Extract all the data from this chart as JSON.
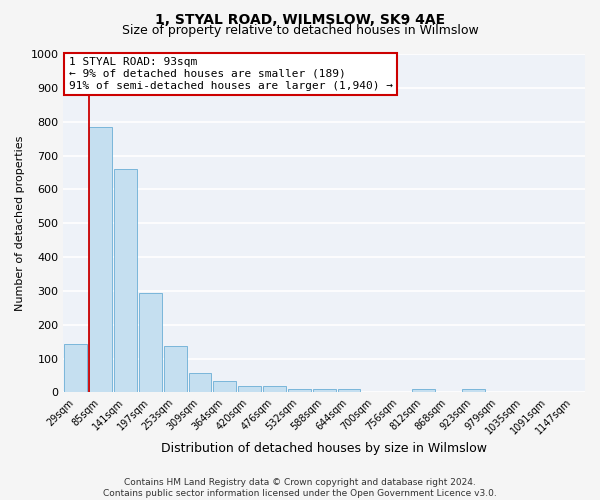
{
  "title": "1, STYAL ROAD, WILMSLOW, SK9 4AE",
  "subtitle": "Size of property relative to detached houses in Wilmslow",
  "xlabel": "Distribution of detached houses by size in Wilmslow",
  "ylabel": "Number of detached properties",
  "bin_labels": [
    "29sqm",
    "85sqm",
    "141sqm",
    "197sqm",
    "253sqm",
    "309sqm",
    "364sqm",
    "420sqm",
    "476sqm",
    "532sqm",
    "588sqm",
    "644sqm",
    "700sqm",
    "756sqm",
    "812sqm",
    "868sqm",
    "923sqm",
    "979sqm",
    "1035sqm",
    "1091sqm",
    "1147sqm"
  ],
  "bar_values": [
    143,
    785,
    660,
    295,
    137,
    57,
    33,
    20,
    20,
    10,
    10,
    10,
    0,
    0,
    10,
    0,
    10,
    0,
    0,
    0,
    0
  ],
  "bar_color": "#c5dff0",
  "bar_edgecolor": "#6aaed6",
  "vline_color": "#cc0000",
  "vline_index": 1,
  "ylim": [
    0,
    1000
  ],
  "yticks": [
    0,
    100,
    200,
    300,
    400,
    500,
    600,
    700,
    800,
    900,
    1000
  ],
  "annotation_title": "1 STYAL ROAD: 93sqm",
  "annotation_line1": "← 9% of detached houses are smaller (189)",
  "annotation_line2": "91% of semi-detached houses are larger (1,940) →",
  "annotation_box_color": "#ffffff",
  "annotation_box_edgecolor": "#cc0000",
  "footer_line1": "Contains HM Land Registry data © Crown copyright and database right 2024.",
  "footer_line2": "Contains public sector information licensed under the Open Government Licence v3.0.",
  "plot_bg_color": "#eef2f8",
  "fig_bg_color": "#f5f5f5",
  "grid_color": "#ffffff",
  "title_fontsize": 10,
  "subtitle_fontsize": 9,
  "ylabel_fontsize": 8,
  "xlabel_fontsize": 9,
  "tick_fontsize": 7,
  "annot_fontsize": 8,
  "footer_fontsize": 6.5
}
